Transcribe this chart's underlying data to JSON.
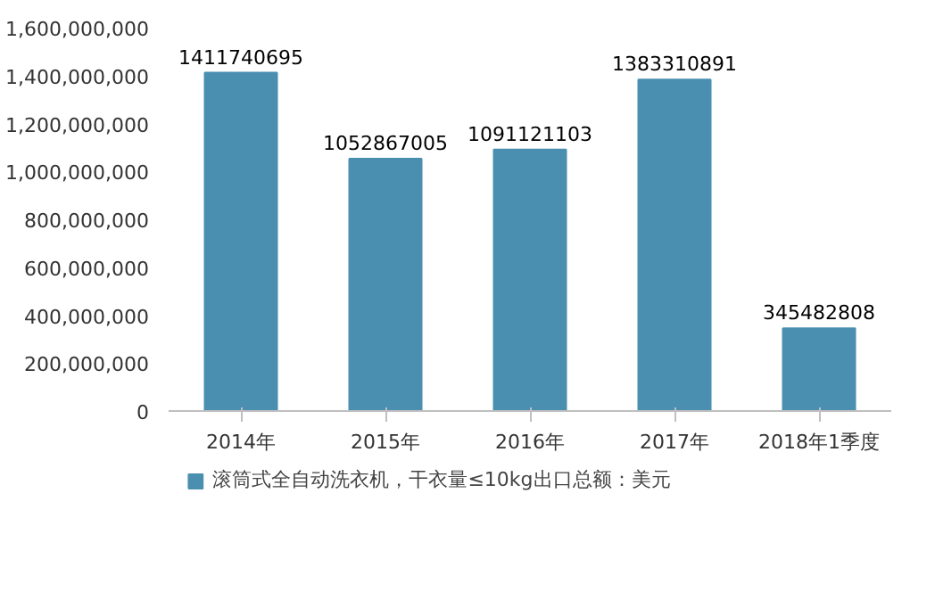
{
  "chart_data": {
    "type": "bar",
    "categories": [
      "2014年",
      "2015年",
      "2016年",
      "2017年",
      "2018年1季度"
    ],
    "series": [
      {
        "name": "滚筒式全自动洗衣机，干衣量≤10kg出口总额：美元",
        "color": "#4a8fb0",
        "values": [
          1411740695,
          1052867005,
          1091121103,
          1383310891,
          345482808
        ]
      }
    ],
    "ylim": [
      0,
      1600000000
    ],
    "yticks": [
      0,
      {
        "value": 200000000,
        "label": "200,000,000"
      },
      {
        "value": 400000000,
        "label": "400,000,000"
      },
      {
        "value": 600000000,
        "label": "600,000,000"
      },
      {
        "value": 800000000,
        "label": "800,000,000"
      },
      {
        "value": 1000000000,
        "label": "1,000,000,000"
      },
      {
        "value": 1200000000,
        "label": "1,200,000,000"
      },
      {
        "value": 1400000000,
        "label": "1,400,000,000"
      },
      {
        "value": 1600000000,
        "label": "1,600,000,000"
      }
    ],
    "data_labels": true,
    "grid": false,
    "legend": "bottom"
  }
}
